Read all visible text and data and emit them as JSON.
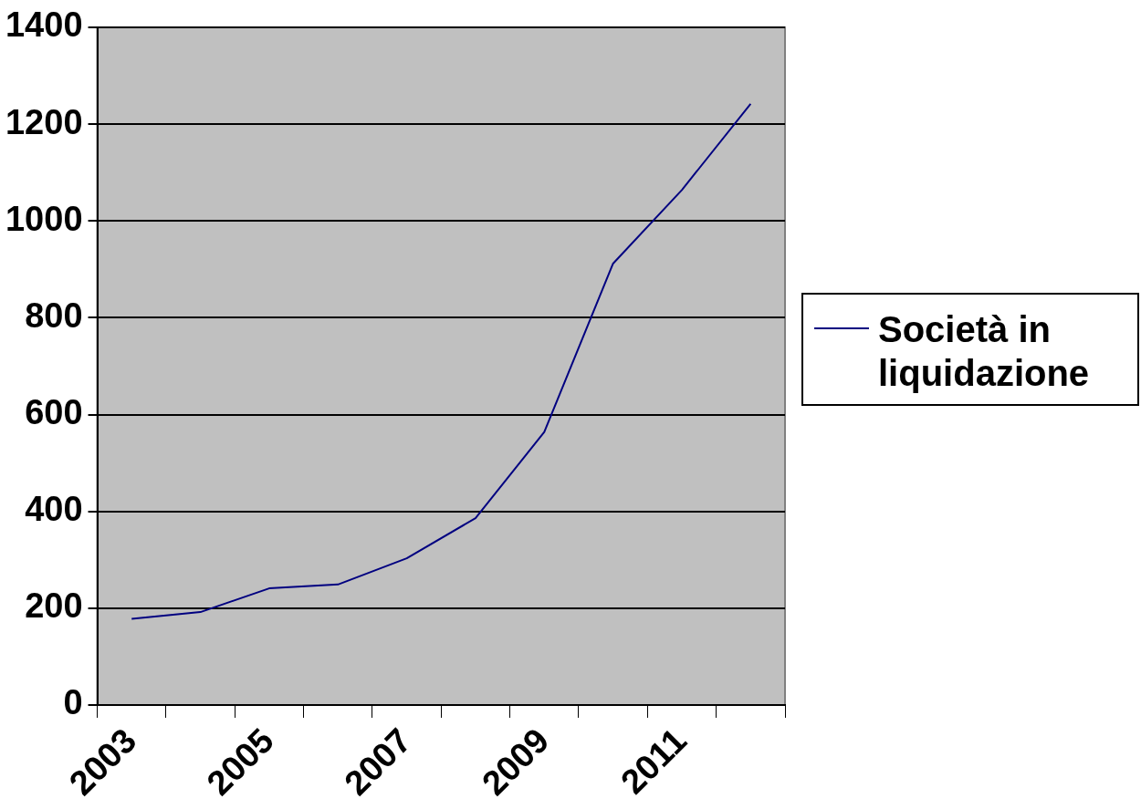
{
  "chart_data": {
    "type": "line",
    "categories": [
      "2003",
      null,
      "2005",
      null,
      "2007",
      null,
      "2009",
      null,
      "2011",
      null
    ],
    "series": [
      {
        "name": "Società in liquidazione",
        "color": "#000080",
        "values": [
          178,
          192,
          241,
          249,
          303,
          386,
          564,
          912,
          1064,
          1242
        ]
      }
    ],
    "ylim": [
      0,
      1400
    ],
    "yticks": [
      0,
      200,
      400,
      600,
      800,
      1000,
      1200,
      1400
    ],
    "grid": "y",
    "legend": "right",
    "marker": "none",
    "line_style": "solid"
  }
}
